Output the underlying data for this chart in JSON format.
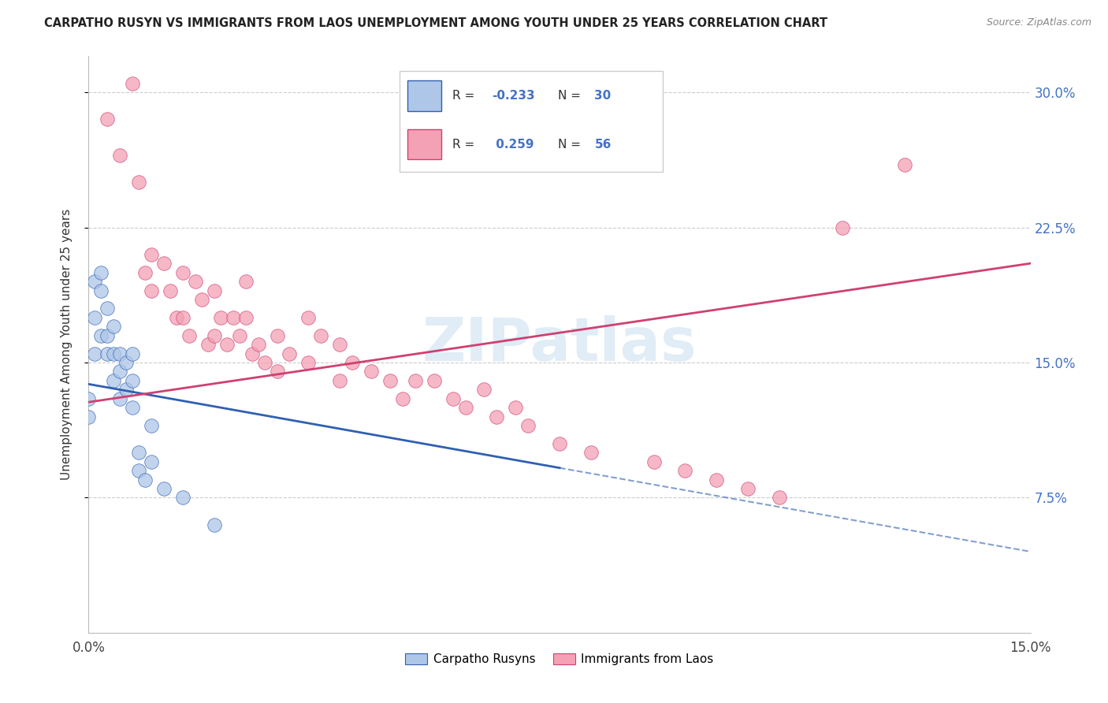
{
  "title": "CARPATHO RUSYN VS IMMIGRANTS FROM LAOS UNEMPLOYMENT AMONG YOUTH UNDER 25 YEARS CORRELATION CHART",
  "source": "Source: ZipAtlas.com",
  "ylabel": "Unemployment Among Youth under 25 years",
  "color_blue": "#aec6e8",
  "color_pink": "#f4a0b5",
  "line_blue": "#3060b0",
  "line_pink": "#d04070",
  "watermark": "ZIPatlas",
  "R_blue": -0.233,
  "N_blue": 30,
  "R_pink": 0.259,
  "N_pink": 56,
  "xlim": [
    0.0,
    0.15
  ],
  "ylim": [
    0.0,
    0.32
  ],
  "ytick_vals": [
    0.075,
    0.15,
    0.225,
    0.3
  ],
  "ytick_labels": [
    "7.5%",
    "15.0%",
    "22.5%",
    "30.0%"
  ],
  "blue_x": [
    0.0,
    0.0,
    0.001,
    0.001,
    0.001,
    0.002,
    0.002,
    0.002,
    0.003,
    0.003,
    0.003,
    0.004,
    0.004,
    0.004,
    0.005,
    0.005,
    0.005,
    0.006,
    0.006,
    0.007,
    0.007,
    0.007,
    0.008,
    0.008,
    0.009,
    0.01,
    0.01,
    0.012,
    0.015,
    0.02
  ],
  "blue_y": [
    0.13,
    0.12,
    0.195,
    0.175,
    0.155,
    0.2,
    0.19,
    0.165,
    0.18,
    0.165,
    0.155,
    0.17,
    0.155,
    0.14,
    0.155,
    0.145,
    0.13,
    0.15,
    0.135,
    0.155,
    0.14,
    0.125,
    0.1,
    0.09,
    0.085,
    0.115,
    0.095,
    0.08,
    0.075,
    0.06
  ],
  "pink_x": [
    0.003,
    0.005,
    0.007,
    0.008,
    0.009,
    0.01,
    0.01,
    0.012,
    0.013,
    0.014,
    0.015,
    0.015,
    0.016,
    0.017,
    0.018,
    0.019,
    0.02,
    0.02,
    0.021,
    0.022,
    0.023,
    0.024,
    0.025,
    0.025,
    0.026,
    0.027,
    0.028,
    0.03,
    0.03,
    0.032,
    0.035,
    0.035,
    0.037,
    0.04,
    0.04,
    0.042,
    0.045,
    0.048,
    0.05,
    0.052,
    0.055,
    0.058,
    0.06,
    0.063,
    0.065,
    0.068,
    0.07,
    0.075,
    0.08,
    0.09,
    0.095,
    0.1,
    0.105,
    0.11,
    0.12,
    0.13
  ],
  "pink_y": [
    0.285,
    0.265,
    0.305,
    0.25,
    0.2,
    0.21,
    0.19,
    0.205,
    0.19,
    0.175,
    0.2,
    0.175,
    0.165,
    0.195,
    0.185,
    0.16,
    0.19,
    0.165,
    0.175,
    0.16,
    0.175,
    0.165,
    0.195,
    0.175,
    0.155,
    0.16,
    0.15,
    0.165,
    0.145,
    0.155,
    0.175,
    0.15,
    0.165,
    0.16,
    0.14,
    0.15,
    0.145,
    0.14,
    0.13,
    0.14,
    0.14,
    0.13,
    0.125,
    0.135,
    0.12,
    0.125,
    0.115,
    0.105,
    0.1,
    0.095,
    0.09,
    0.085,
    0.08,
    0.075,
    0.225,
    0.26
  ],
  "blue_line_x": [
    0.0,
    0.15
  ],
  "blue_line_y": [
    0.138,
    0.045
  ],
  "pink_line_x": [
    0.0,
    0.15
  ],
  "pink_line_y": [
    0.128,
    0.205
  ]
}
